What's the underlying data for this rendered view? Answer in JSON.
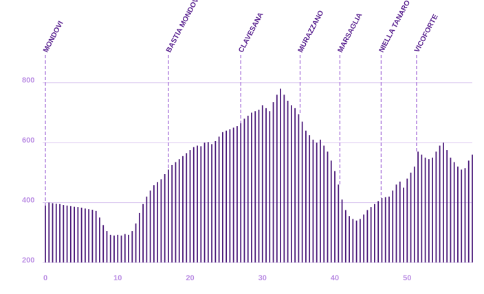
{
  "chart_data": {
    "type": "bar",
    "x": [
      0,
      0.5,
      1,
      1.5,
      2,
      2.5,
      3,
      3.5,
      4,
      4.5,
      5,
      5.5,
      6,
      6.5,
      7,
      7.5,
      8,
      8.5,
      9,
      9.5,
      10,
      10.5,
      11,
      11.5,
      12,
      12.5,
      13,
      13.5,
      14,
      14.5,
      15,
      15.5,
      16,
      16.5,
      17,
      17.5,
      18,
      18.5,
      19,
      19.5,
      20,
      20.5,
      21,
      21.5,
      22,
      22.5,
      23,
      23.5,
      24,
      24.5,
      25,
      25.5,
      26,
      26.5,
      27,
      27.5,
      28,
      28.5,
      29,
      29.5,
      30,
      30.5,
      31,
      31.5,
      32,
      32.5,
      33,
      33.5,
      34,
      34.5,
      35,
      35.5,
      36,
      36.5,
      37,
      37.5,
      38,
      38.5,
      39,
      39.5,
      40,
      40.5,
      41,
      41.5,
      42,
      42.5,
      43,
      43.5,
      44,
      44.5,
      45,
      45.5,
      46,
      46.5,
      47,
      47.5,
      48,
      48.5,
      49,
      49.5,
      50,
      50.5,
      51,
      51.5,
      52,
      52.5,
      53,
      53.5,
      54,
      54.5,
      55,
      55.5,
      56,
      56.5,
      57,
      57.5,
      58,
      58.5,
      59
    ],
    "values": [
      390,
      400,
      398,
      396,
      395,
      392,
      390,
      388,
      386,
      385,
      383,
      380,
      378,
      376,
      372,
      350,
      325,
      305,
      292,
      290,
      292,
      290,
      295,
      292,
      305,
      330,
      365,
      395,
      420,
      440,
      458,
      468,
      478,
      495,
      510,
      525,
      535,
      545,
      555,
      565,
      575,
      585,
      590,
      588,
      600,
      602,
      595,
      605,
      620,
      635,
      640,
      645,
      650,
      655,
      665,
      680,
      690,
      700,
      705,
      710,
      725,
      715,
      705,
      735,
      760,
      780,
      760,
      740,
      725,
      715,
      695,
      670,
      640,
      625,
      610,
      600,
      610,
      590,
      570,
      540,
      505,
      460,
      410,
      375,
      355,
      345,
      340,
      345,
      360,
      375,
      385,
      395,
      405,
      415,
      418,
      420,
      440,
      460,
      470,
      450,
      480,
      500,
      520,
      570,
      560,
      550,
      545,
      550,
      570,
      590,
      600,
      575,
      550,
      535,
      520,
      510,
      515,
      540,
      560
    ],
    "color": "#4b1a7a",
    "xlim": [
      0,
      59
    ],
    "xticks": [
      0,
      10,
      20,
      30,
      40,
      50
    ],
    "ylim": [
      200,
      900
    ],
    "yticks": [
      200,
      400,
      600,
      800
    ],
    "grid": true,
    "waypoints": [
      {
        "label": "MONDOVI",
        "x": 0
      },
      {
        "label": "BASTIA MONDOVI",
        "x": 17
      },
      {
        "label": "CLAVESANA",
        "x": 27
      },
      {
        "label": "MURAZZANO",
        "x": 35.2
      },
      {
        "label": "MARSAGLIA",
        "x": 40.7
      },
      {
        "label": "NIELLA TANARO",
        "x": 46.4
      },
      {
        "label": "VICOFORTE",
        "x": 51.3
      }
    ]
  }
}
